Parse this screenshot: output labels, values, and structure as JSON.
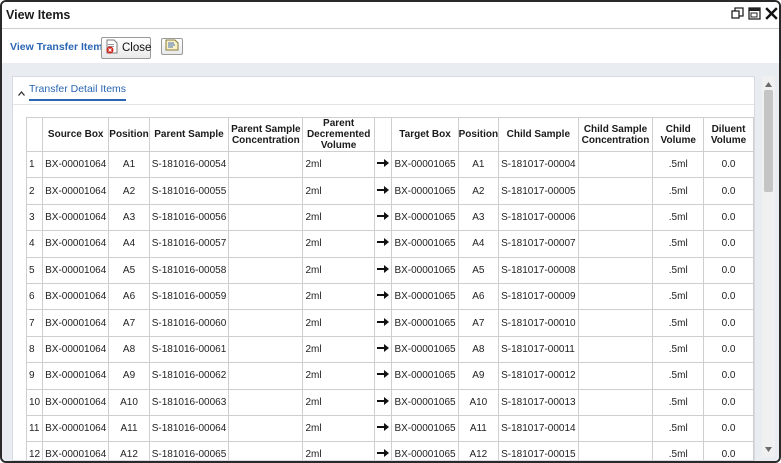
{
  "window": {
    "title": "View Items"
  },
  "toolbar": {
    "label": "View Transfer Items",
    "close_label": "Close"
  },
  "panel": {
    "title": "Transfer Detail Items"
  },
  "table": {
    "columns": [
      "",
      "Source Box",
      "Position",
      "Parent Sample",
      "Parent Sample Concentration",
      "Parent Decremented Volume",
      "",
      "Target Box",
      "Position",
      "Child Sample",
      "Child Sample Concentration",
      "Child Volume",
      "Diluent Volume"
    ],
    "rows": [
      [
        "1",
        "BX-00001064",
        "A1",
        "S-181016-00054",
        "",
        "2ml",
        "BX-00001065",
        "A1",
        "S-181017-00004",
        "",
        ".5ml",
        "0.0"
      ],
      [
        "2",
        "BX-00001064",
        "A2",
        "S-181016-00055",
        "",
        "2ml",
        "BX-00001065",
        "A2",
        "S-181017-00005",
        "",
        ".5ml",
        "0.0"
      ],
      [
        "3",
        "BX-00001064",
        "A3",
        "S-181016-00056",
        "",
        "2ml",
        "BX-00001065",
        "A3",
        "S-181017-00006",
        "",
        ".5ml",
        "0.0"
      ],
      [
        "4",
        "BX-00001064",
        "A4",
        "S-181016-00057",
        "",
        "2ml",
        "BX-00001065",
        "A4",
        "S-181017-00007",
        "",
        ".5ml",
        "0.0"
      ],
      [
        "5",
        "BX-00001064",
        "A5",
        "S-181016-00058",
        "",
        "2ml",
        "BX-00001065",
        "A5",
        "S-181017-00008",
        "",
        ".5ml",
        "0.0"
      ],
      [
        "6",
        "BX-00001064",
        "A6",
        "S-181016-00059",
        "",
        "2ml",
        "BX-00001065",
        "A6",
        "S-181017-00009",
        "",
        ".5ml",
        "0.0"
      ],
      [
        "7",
        "BX-00001064",
        "A7",
        "S-181016-00060",
        "",
        "2ml",
        "BX-00001065",
        "A7",
        "S-181017-00010",
        "",
        ".5ml",
        "0.0"
      ],
      [
        "8",
        "BX-00001064",
        "A8",
        "S-181016-00061",
        "",
        "2ml",
        "BX-00001065",
        "A8",
        "S-181017-00011",
        "",
        ".5ml",
        "0.0"
      ],
      [
        "9",
        "BX-00001064",
        "A9",
        "S-181016-00062",
        "",
        "2ml",
        "BX-00001065",
        "A9",
        "S-181017-00012",
        "",
        ".5ml",
        "0.0"
      ],
      [
        "10",
        "BX-00001064",
        "A10",
        "S-181016-00063",
        "",
        "2ml",
        "BX-00001065",
        "A10",
        "S-181017-00013",
        "",
        ".5ml",
        "0.0"
      ],
      [
        "11",
        "BX-00001064",
        "A11",
        "S-181016-00064",
        "",
        "2ml",
        "BX-00001065",
        "A11",
        "S-181017-00014",
        "",
        ".5ml",
        "0.0"
      ],
      [
        "12",
        "BX-00001064",
        "A12",
        "S-181016-00065",
        "",
        "2ml",
        "BX-00001065",
        "A12",
        "S-181017-00015",
        "",
        ".5ml",
        "0.0"
      ]
    ]
  },
  "icons": {
    "restore": "restore-window-icon",
    "maximize": "maximize-window-icon",
    "close": "close-window-icon",
    "close_button": "close-document-icon",
    "note": "note-icon",
    "collapse": "chevron-up-icon",
    "arrow": "right-arrow-icon"
  },
  "colors": {
    "accent": "#2a66b3",
    "background": "#e9edf2"
  }
}
